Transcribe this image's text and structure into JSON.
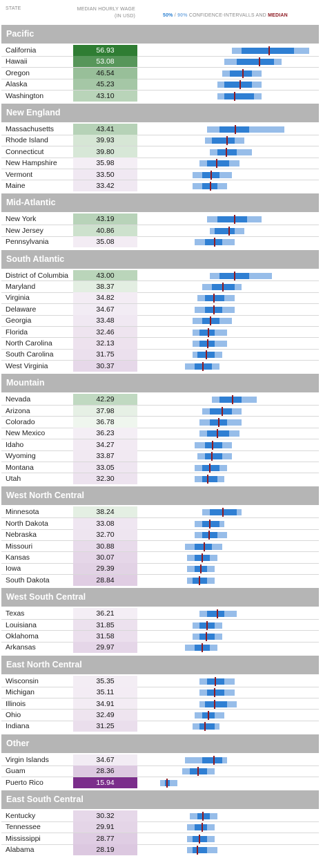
{
  "header": {
    "state_label": "STATE",
    "wage_label_line1": "MEDIAN HOURLY WAGE",
    "wage_label_line2": "(IN USD)",
    "ci_50": "50%",
    "ci_sep": " / ",
    "ci_90": "90%",
    "ci_text": " CONFIDENCE-INTERVALLS AND ",
    "ci_median": "MEDIAN"
  },
  "colors": {
    "high_green": "#2e7d32",
    "low_purple": "#7b2d8b",
    "ci50": "#2f7fd3",
    "ci90": "#97bde9",
    "median": "#8e1a22",
    "region_bar": "#b5b5b5"
  },
  "chart_data": {
    "type": "table",
    "columns": [
      "State",
      "Median hourly wage (in USD)",
      "50% / 90% confidence intervals and median"
    ],
    "regions": [
      {
        "name": "Pacific",
        "rows": [
          {
            "state": "California",
            "wage": "56.93",
            "median": 56.93,
            "ci50": [
              46,
              67
            ],
            "ci90": [
              42,
              73
            ]
          },
          {
            "state": "Hawaii",
            "wage": "53.08",
            "median": 53.08,
            "ci50": [
              44,
              59
            ],
            "ci90": [
              39,
              62
            ]
          },
          {
            "state": "Oregon",
            "wage": "46.54",
            "median": 46.54,
            "ci50": [
              41,
              50
            ],
            "ci90": [
              38,
              54
            ]
          },
          {
            "state": "Alaska",
            "wage": "45.23",
            "median": 45.23,
            "ci50": [
              39,
              50
            ],
            "ci90": [
              36,
              54
            ]
          },
          {
            "state": "Washington",
            "wage": "43.10",
            "median": 43.1,
            "ci50": [
              39,
              51
            ],
            "ci90": [
              36,
              54
            ]
          }
        ]
      },
      {
        "name": "New England",
        "rows": [
          {
            "state": "Massachusetts",
            "wage": "43.41",
            "median": 43.41,
            "ci50": [
              37,
              49
            ],
            "ci90": [
              32,
              63
            ]
          },
          {
            "state": "Rhode Island",
            "wage": "39.93",
            "median": 39.93,
            "ci50": [
              34,
              43
            ],
            "ci90": [
              31,
              47
            ]
          },
          {
            "state": "Connecticut",
            "wage": "39.80",
            "median": 39.8,
            "ci50": [
              36,
              44
            ],
            "ci90": [
              33,
              50
            ]
          },
          {
            "state": "New Hampshire",
            "wage": "35.98",
            "median": 35.98,
            "ci50": [
              32,
              41
            ],
            "ci90": [
              29,
              45
            ]
          },
          {
            "state": "Vermont",
            "wage": "33.50",
            "median": 33.5,
            "ci50": [
              30,
              37
            ],
            "ci90": [
              26,
              42
            ]
          },
          {
            "state": "Maine",
            "wage": "33.42",
            "median": 33.42,
            "ci50": [
              30,
              36
            ],
            "ci90": [
              26,
              40
            ]
          }
        ]
      },
      {
        "name": "Mid-Atlantic",
        "rows": [
          {
            "state": "New York",
            "wage": "43.19",
            "median": 43.19,
            "ci50": [
              36,
              48
            ],
            "ci90": [
              32,
              54
            ]
          },
          {
            "state": "New Jersey",
            "wage": "40.86",
            "median": 40.86,
            "ci50": [
              35,
              43
            ],
            "ci90": [
              33,
              47
            ]
          },
          {
            "state": "Pennsylvania",
            "wage": "35.08",
            "median": 35.08,
            "ci50": [
              31,
              38
            ],
            "ci90": [
              27,
              43
            ]
          }
        ]
      },
      {
        "name": "South Atlantic",
        "rows": [
          {
            "state": "District of Columbia",
            "wage": "43.00",
            "median": 43.0,
            "ci50": [
              37,
              49
            ],
            "ci90": [
              33,
              58
            ]
          },
          {
            "state": "Maryland",
            "wage": "38.37",
            "median": 38.37,
            "ci50": [
              34,
              43
            ],
            "ci90": [
              30,
              46
            ]
          },
          {
            "state": "Virginia",
            "wage": "34.82",
            "median": 34.82,
            "ci50": [
              31,
              39
            ],
            "ci90": [
              28,
              43
            ]
          },
          {
            "state": "Delaware",
            "wage": "34.67",
            "median": 34.67,
            "ci50": [
              31,
              38
            ],
            "ci90": [
              27,
              43
            ]
          },
          {
            "state": "Georgia",
            "wage": "33.48",
            "median": 33.48,
            "ci50": [
              30,
              37
            ],
            "ci90": [
              26,
              42
            ]
          },
          {
            "state": "Florida",
            "wage": "32.46",
            "median": 32.46,
            "ci50": [
              29,
              35
            ],
            "ci90": [
              26,
              40
            ]
          },
          {
            "state": "North Carolina",
            "wage": "32.13",
            "median": 32.13,
            "ci50": [
              29,
              35
            ],
            "ci90": [
              26,
              40
            ]
          },
          {
            "state": "South Carolina",
            "wage": "31.75",
            "median": 31.75,
            "ci50": [
              28,
              35
            ],
            "ci90": [
              26,
              38
            ]
          },
          {
            "state": "West Virginia",
            "wage": "30.37",
            "median": 30.37,
            "ci50": [
              27,
              34
            ],
            "ci90": [
              23,
              37
            ]
          }
        ]
      },
      {
        "name": "Mountain",
        "rows": [
          {
            "state": "Nevada",
            "wage": "42.29",
            "median": 42.29,
            "ci50": [
              37,
              46
            ],
            "ci90": [
              34,
              52
            ]
          },
          {
            "state": "Arizona",
            "wage": "37.98",
            "median": 37.98,
            "ci50": [
              33,
              42
            ],
            "ci90": [
              30,
              46
            ]
          },
          {
            "state": "Colorado",
            "wage": "36.78",
            "median": 36.78,
            "ci50": [
              33,
              40
            ],
            "ci90": [
              29,
              46
            ]
          },
          {
            "state": "New Mexico",
            "wage": "36.23",
            "median": 36.23,
            "ci50": [
              32,
              41
            ],
            "ci90": [
              29,
              45
            ]
          },
          {
            "state": "Idaho",
            "wage": "34.27",
            "median": 34.27,
            "ci50": [
              31,
              38
            ],
            "ci90": [
              27,
              42
            ]
          },
          {
            "state": "Wyoming",
            "wage": "33.87",
            "median": 33.87,
            "ci50": [
              31,
              38
            ],
            "ci90": [
              28,
              42
            ]
          },
          {
            "state": "Montana",
            "wage": "33.05",
            "median": 33.05,
            "ci50": [
              30,
              37
            ],
            "ci90": [
              27,
              40
            ]
          },
          {
            "state": "Utah",
            "wage": "32.30",
            "median": 32.3,
            "ci50": [
              30,
              36
            ],
            "ci90": [
              27,
              39
            ]
          }
        ]
      },
      {
        "name": "West North Central",
        "rows": [
          {
            "state": "Minnesota",
            "wage": "38.24",
            "median": 38.24,
            "ci50": [
              33,
              44
            ],
            "ci90": [
              30,
              46
            ]
          },
          {
            "state": "North Dakota",
            "wage": "33.08",
            "median": 33.08,
            "ci50": [
              30,
              37
            ],
            "ci90": [
              27,
              39
            ]
          },
          {
            "state": "Nebraska",
            "wage": "32.70",
            "median": 32.7,
            "ci50": [
              30,
              36
            ],
            "ci90": [
              27,
              40
            ]
          },
          {
            "state": "Missouri",
            "wage": "30.88",
            "median": 30.88,
            "ci50": [
              27,
              34
            ],
            "ci90": [
              23,
              38
            ]
          },
          {
            "state": "Kansas",
            "wage": "30.07",
            "median": 30.07,
            "ci50": [
              27,
              33
            ],
            "ci90": [
              24,
              36
            ]
          },
          {
            "state": "Iowa",
            "wage": "29.39",
            "median": 29.39,
            "ci50": [
              27,
              32
            ],
            "ci90": [
              24,
              35
            ]
          },
          {
            "state": "South Dakota",
            "wage": "28.84",
            "median": 28.84,
            "ci50": [
              26,
              32
            ],
            "ci90": [
              24,
              35
            ]
          }
        ]
      },
      {
        "name": "West South Central",
        "rows": [
          {
            "state": "Texas",
            "wage": "36.21",
            "median": 36.21,
            "ci50": [
              32,
              39
            ],
            "ci90": [
              29,
              44
            ]
          },
          {
            "state": "Louisiana",
            "wage": "31.85",
            "median": 31.85,
            "ci50": [
              29,
              35
            ],
            "ci90": [
              26,
              38
            ]
          },
          {
            "state": "Oklahoma",
            "wage": "31.58",
            "median": 31.58,
            "ci50": [
              29,
              35
            ],
            "ci90": [
              26,
              38
            ]
          },
          {
            "state": "Arkansas",
            "wage": "29.97",
            "median": 29.97,
            "ci50": [
              27,
              33
            ],
            "ci90": [
              23,
              36
            ]
          }
        ]
      },
      {
        "name": "East North Central",
        "rows": [
          {
            "state": "Wisconsin",
            "wage": "35.35",
            "median": 35.35,
            "ci50": [
              32,
              39
            ],
            "ci90": [
              29,
              43
            ]
          },
          {
            "state": "Michigan",
            "wage": "35.11",
            "median": 35.11,
            "ci50": [
              32,
              39
            ],
            "ci90": [
              29,
              43
            ]
          },
          {
            "state": "Illinois",
            "wage": "34.91",
            "median": 34.91,
            "ci50": [
              31,
              40
            ],
            "ci90": [
              29,
              44
            ]
          },
          {
            "state": "Ohio",
            "wage": "32.49",
            "median": 32.49,
            "ci50": [
              30,
              35
            ],
            "ci90": [
              27,
              39
            ]
          },
          {
            "state": "Indiana",
            "wage": "31.25",
            "median": 31.25,
            "ci50": [
              29,
              35
            ],
            "ci90": [
              26,
              37
            ]
          }
        ]
      },
      {
        "name": "Other",
        "rows": [
          {
            "state": "Virgin Islands",
            "wage": "34.67",
            "median": 34.67,
            "ci50": [
              30,
              38
            ],
            "ci90": [
              23,
              40
            ]
          },
          {
            "state": "Guam",
            "wage": "28.36",
            "median": 28.36,
            "ci50": [
              25,
              32
            ],
            "ci90": [
              22,
              35
            ]
          },
          {
            "state": "Puerto Rico",
            "wage": "15.94",
            "median": 15.94,
            "ci50": [
              15,
              17
            ],
            "ci90": [
              13,
              20
            ]
          }
        ]
      },
      {
        "name": "East South Central",
        "rows": [
          {
            "state": "Kentucky",
            "wage": "30.32",
            "median": 30.32,
            "ci50": [
              28,
              33
            ],
            "ci90": [
              25,
              36
            ]
          },
          {
            "state": "Tennessee",
            "wage": "29.91",
            "median": 29.91,
            "ci50": [
              27,
              32
            ],
            "ci90": [
              24,
              35
            ]
          },
          {
            "state": "Mississippi",
            "wage": "28.77",
            "median": 28.77,
            "ci50": [
              26,
              32
            ],
            "ci90": [
              24,
              35
            ]
          },
          {
            "state": "Alabama",
            "wage": "28.19",
            "median": 28.19,
            "ci50": [
              26,
              32
            ],
            "ci90": [
              24,
              36
            ]
          }
        ]
      }
    ]
  }
}
